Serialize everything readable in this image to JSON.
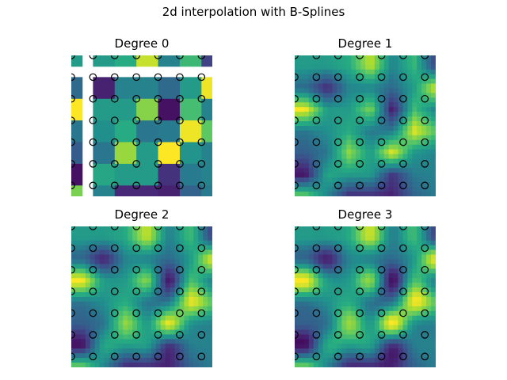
{
  "title": "2d interpolation with B-Splines",
  "chart_data": {
    "type": "heatmap",
    "colormap": "viridis",
    "grid_points": 7,
    "node_values": [
      [
        0.55,
        0.55,
        0.62,
        0.92,
        0.45,
        0.68,
        0.2
      ],
      [
        0.35,
        0.1,
        0.45,
        0.45,
        0.35,
        0.55,
        0.98
      ],
      [
        1.0,
        0.55,
        0.55,
        0.82,
        0.05,
        0.7,
        0.45
      ],
      [
        0.4,
        0.5,
        0.62,
        0.4,
        0.42,
        0.98,
        0.75
      ],
      [
        0.3,
        0.4,
        0.85,
        0.55,
        1.0,
        0.52,
        0.45
      ],
      [
        0.05,
        0.6,
        0.55,
        0.55,
        0.15,
        0.42,
        0.45
      ],
      [
        0.8,
        0.45,
        0.12,
        0.12,
        0.1,
        0.32,
        0.42
      ]
    ],
    "panels": [
      {
        "title": "Degree 0",
        "degree": 0
      },
      {
        "title": "Degree 1",
        "degree": 1
      },
      {
        "title": "Degree 2",
        "degree": 2
      },
      {
        "title": "Degree 3",
        "degree": 3
      }
    ]
  }
}
